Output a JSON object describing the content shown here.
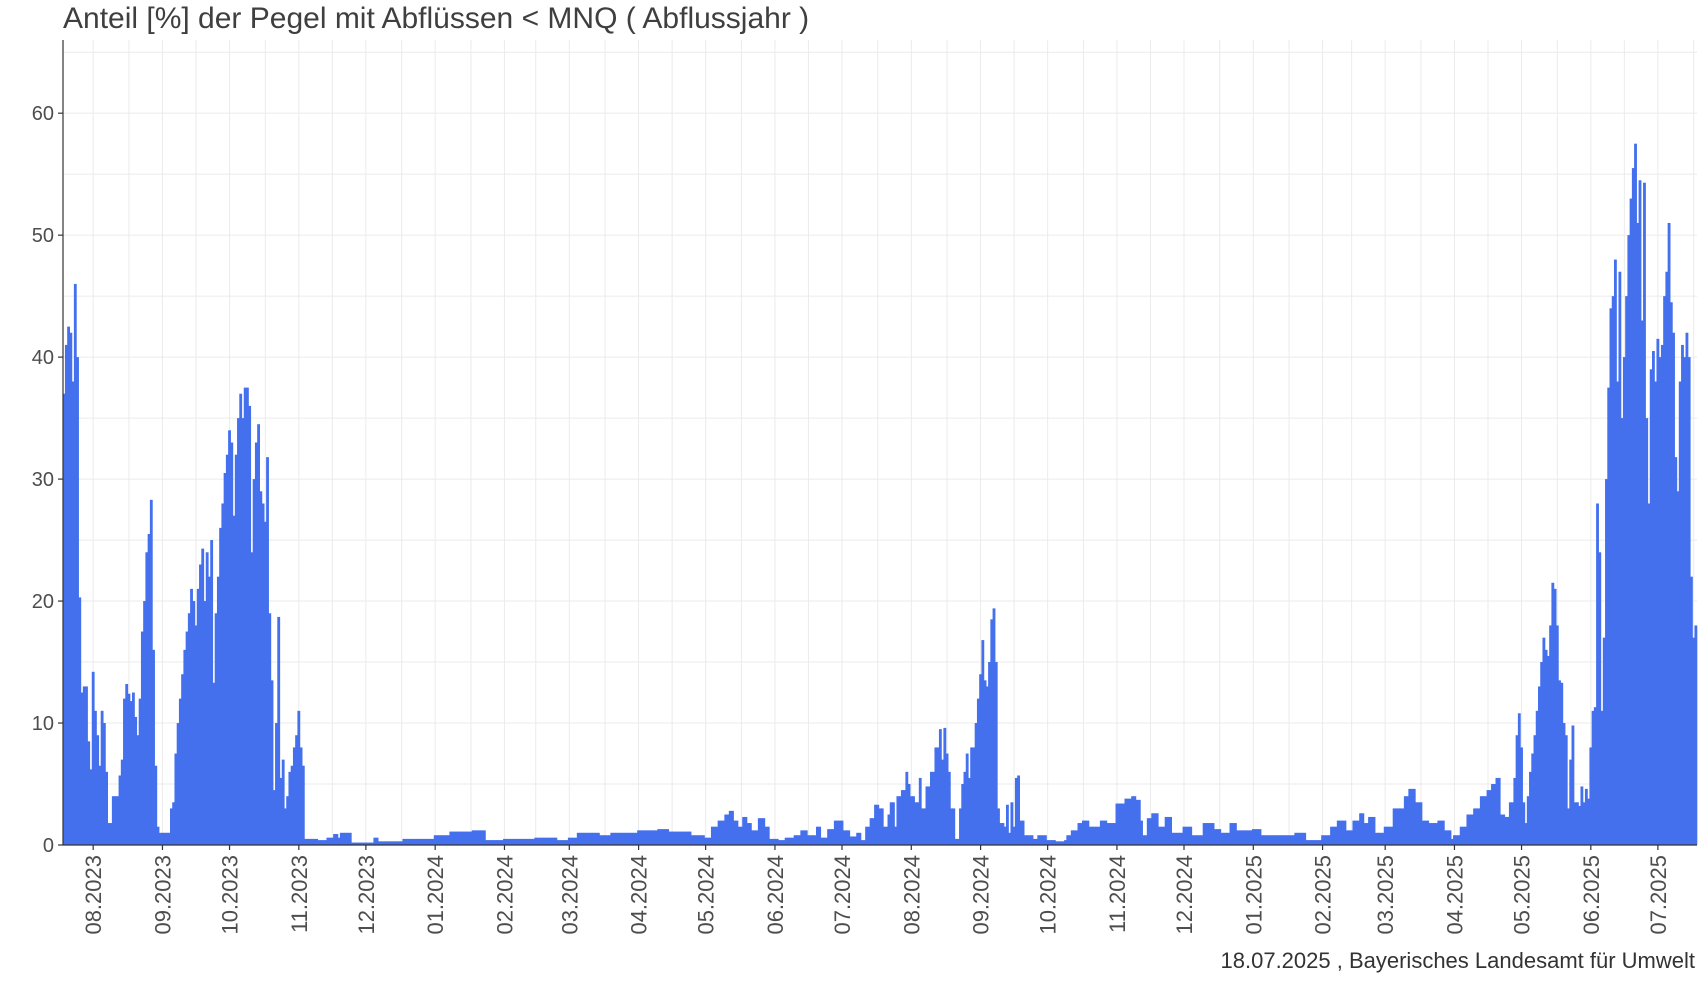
{
  "chart_data": {
    "type": "bar",
    "title": "Anteil [%] der Pegel mit Abflüssen < MNQ ( Abflussjahr )",
    "xlabel": "",
    "ylabel": "",
    "x_range": [
      "2023-07-19",
      "2025-07-18"
    ],
    "ylim": [
      0,
      66
    ],
    "y_ticks": [
      0,
      10,
      20,
      30,
      40,
      50,
      60
    ],
    "x_ticks": [
      "2023-08-01",
      "2023-09-01",
      "2023-10-01",
      "2023-11-01",
      "2023-12-01",
      "2024-01-01",
      "2024-02-01",
      "2024-03-01",
      "2024-04-01",
      "2024-05-01",
      "2024-06-01",
      "2024-07-01",
      "2024-08-01",
      "2024-09-01",
      "2024-10-01",
      "2024-11-01",
      "2024-12-01",
      "2025-01-01",
      "2025-02-01",
      "2025-03-01",
      "2025-04-01",
      "2025-05-01",
      "2025-06-01",
      "2025-07-01"
    ],
    "x_tick_labels": [
      "08.2023",
      "09.2023",
      "10.2023",
      "11.2023",
      "12.2023",
      "01.2024",
      "02.2024",
      "03.2024",
      "04.2024",
      "05.2024",
      "06.2024",
      "07.2024",
      "08.2024",
      "09.2024",
      "10.2024",
      "11.2024",
      "12.2024",
      "01.2025",
      "02.2025",
      "03.2025",
      "04.2025",
      "05.2025",
      "06.2025",
      "07.2025"
    ],
    "grid": true,
    "bar_color": "#4470ee",
    "series_anchors": [
      [
        "2023-07-19",
        37
      ],
      [
        "2023-07-20",
        41
      ],
      [
        "2023-07-21",
        42.5
      ],
      [
        "2023-07-22",
        42
      ],
      [
        "2023-07-23",
        38
      ],
      [
        "2023-07-24",
        46
      ],
      [
        "2023-07-25",
        40
      ],
      [
        "2023-07-26",
        20.3
      ],
      [
        "2023-07-27",
        12.5
      ],
      [
        "2023-07-28",
        13
      ],
      [
        "2023-07-30",
        8.5
      ],
      [
        "2023-07-31",
        6.2
      ],
      [
        "2023-08-01",
        14.2
      ],
      [
        "2023-08-02",
        11
      ],
      [
        "2023-08-03",
        9
      ],
      [
        "2023-08-04",
        6.5
      ],
      [
        "2023-08-05",
        11
      ],
      [
        "2023-08-06",
        10
      ],
      [
        "2023-08-07",
        6
      ],
      [
        "2023-08-08",
        1.8
      ],
      [
        "2023-08-10",
        4
      ],
      [
        "2023-08-12",
        4
      ],
      [
        "2023-08-13",
        5.7
      ],
      [
        "2023-08-14",
        7
      ],
      [
        "2023-08-15",
        12
      ],
      [
        "2023-08-16",
        13.2
      ],
      [
        "2023-08-17",
        12.4
      ],
      [
        "2023-08-18",
        11.8
      ],
      [
        "2023-08-19",
        12.5
      ],
      [
        "2023-08-20",
        10.5
      ],
      [
        "2023-08-21",
        9
      ],
      [
        "2023-08-22",
        12
      ],
      [
        "2023-08-23",
        17.5
      ],
      [
        "2023-08-24",
        20
      ],
      [
        "2023-08-25",
        24
      ],
      [
        "2023-08-26",
        25.5
      ],
      [
        "2023-08-27",
        28.3
      ],
      [
        "2023-08-28",
        16
      ],
      [
        "2023-08-29",
        6.5
      ],
      [
        "2023-08-30",
        1.5
      ],
      [
        "2023-08-31",
        1
      ],
      [
        "2023-09-04",
        1
      ],
      [
        "2023-09-05",
        3
      ],
      [
        "2023-09-06",
        3.5
      ],
      [
        "2023-09-07",
        7.5
      ],
      [
        "2023-09-08",
        10
      ],
      [
        "2023-09-09",
        12
      ],
      [
        "2023-09-10",
        14
      ],
      [
        "2023-09-11",
        16
      ],
      [
        "2023-09-12",
        17.5
      ],
      [
        "2023-09-13",
        19
      ],
      [
        "2023-09-14",
        21
      ],
      [
        "2023-09-15",
        20
      ],
      [
        "2023-09-16",
        18
      ],
      [
        "2023-09-17",
        21
      ],
      [
        "2023-09-18",
        23
      ],
      [
        "2023-09-19",
        24.3
      ],
      [
        "2023-09-20",
        20
      ],
      [
        "2023-09-21",
        24
      ],
      [
        "2023-09-22",
        22
      ],
      [
        "2023-09-23",
        25
      ],
      [
        "2023-09-24",
        13.3
      ],
      [
        "2023-09-25",
        19
      ],
      [
        "2023-09-26",
        22
      ],
      [
        "2023-09-27",
        26
      ],
      [
        "2023-09-28",
        28
      ],
      [
        "2023-09-29",
        30.5
      ],
      [
        "2023-09-30",
        32
      ],
      [
        "2023-10-01",
        34
      ],
      [
        "2023-10-02",
        33
      ],
      [
        "2023-10-03",
        27
      ],
      [
        "2023-10-04",
        32
      ],
      [
        "2023-10-05",
        35
      ],
      [
        "2023-10-06",
        37
      ],
      [
        "2023-10-07",
        35
      ],
      [
        "2023-10-08",
        37.5
      ],
      [
        "2023-10-09",
        37.5
      ],
      [
        "2023-10-10",
        36
      ],
      [
        "2023-10-11",
        24
      ],
      [
        "2023-10-12",
        30
      ],
      [
        "2023-10-13",
        33
      ],
      [
        "2023-10-14",
        34.5
      ],
      [
        "2023-10-15",
        29
      ],
      [
        "2023-10-16",
        28
      ],
      [
        "2023-10-17",
        26.5
      ],
      [
        "2023-10-18",
        31.8
      ],
      [
        "2023-10-19",
        19
      ],
      [
        "2023-10-20",
        13.5
      ],
      [
        "2023-10-21",
        4.5
      ],
      [
        "2023-10-22",
        10
      ],
      [
        "2023-10-23",
        18.7
      ],
      [
        "2023-10-24",
        5.5
      ],
      [
        "2023-10-25",
        7
      ],
      [
        "2023-10-26",
        3
      ],
      [
        "2023-10-27",
        4
      ],
      [
        "2023-10-28",
        6
      ],
      [
        "2023-10-29",
        6.5
      ],
      [
        "2023-10-30",
        8
      ],
      [
        "2023-10-31",
        9
      ],
      [
        "2023-11-01",
        11
      ],
      [
        "2023-11-02",
        8
      ],
      [
        "2023-11-03",
        6.5
      ],
      [
        "2023-11-04",
        0.5
      ],
      [
        "2023-11-10",
        0.4
      ],
      [
        "2023-11-14",
        0.6
      ],
      [
        "2023-11-17",
        0.9
      ],
      [
        "2023-11-19",
        0.6
      ],
      [
        "2023-11-20",
        1
      ],
      [
        "2023-11-25",
        0.2
      ],
      [
        "2023-12-05",
        0.6
      ],
      [
        "2023-12-07",
        0.3
      ],
      [
        "2023-12-15",
        0.3
      ],
      [
        "2023-12-18",
        0.5
      ],
      [
        "2023-12-25",
        0.5
      ],
      [
        "2024-01-01",
        0.8
      ],
      [
        "2024-01-08",
        1.1
      ],
      [
        "2024-01-18",
        1.2
      ],
      [
        "2024-01-24",
        0.4
      ],
      [
        "2024-02-01",
        0.5
      ],
      [
        "2024-02-15",
        0.6
      ],
      [
        "2024-02-25",
        0.4
      ],
      [
        "2024-03-01",
        0.6
      ],
      [
        "2024-03-05",
        1
      ],
      [
        "2024-03-15",
        0.8
      ],
      [
        "2024-03-20",
        1
      ],
      [
        "2024-04-01",
        1.2
      ],
      [
        "2024-04-10",
        1.3
      ],
      [
        "2024-04-15",
        1.1
      ],
      [
        "2024-04-25",
        0.8
      ],
      [
        "2024-05-01",
        0.6
      ],
      [
        "2024-05-04",
        1.5
      ],
      [
        "2024-05-07",
        2
      ],
      [
        "2024-05-10",
        2.5
      ],
      [
        "2024-05-12",
        2.8
      ],
      [
        "2024-05-14",
        2
      ],
      [
        "2024-05-16",
        1.5
      ],
      [
        "2024-05-18",
        2.3
      ],
      [
        "2024-05-20",
        1.8
      ],
      [
        "2024-05-22",
        1.2
      ],
      [
        "2024-05-25",
        2.2
      ],
      [
        "2024-05-28",
        1.5
      ],
      [
        "2024-05-30",
        0.5
      ],
      [
        "2024-06-03",
        0.4
      ],
      [
        "2024-06-06",
        0.6
      ],
      [
        "2024-06-10",
        0.8
      ],
      [
        "2024-06-13",
        1.2
      ],
      [
        "2024-06-16",
        0.8
      ],
      [
        "2024-06-20",
        1.5
      ],
      [
        "2024-06-22",
        0.6
      ],
      [
        "2024-06-25",
        1.3
      ],
      [
        "2024-06-28",
        2
      ],
      [
        "2024-07-02",
        1.2
      ],
      [
        "2024-07-05",
        0.7
      ],
      [
        "2024-07-08",
        1
      ],
      [
        "2024-07-10",
        0.4
      ],
      [
        "2024-07-12",
        1.5
      ],
      [
        "2024-07-14",
        2.2
      ],
      [
        "2024-07-16",
        3.3
      ],
      [
        "2024-07-18",
        3
      ],
      [
        "2024-07-20",
        1.5
      ],
      [
        "2024-07-22",
        2.5
      ],
      [
        "2024-07-23",
        3.5
      ],
      [
        "2024-07-25",
        1.5
      ],
      [
        "2024-07-26",
        4
      ],
      [
        "2024-07-28",
        4.5
      ],
      [
        "2024-07-30",
        6
      ],
      [
        "2024-07-31",
        5
      ],
      [
        "2024-08-01",
        4
      ],
      [
        "2024-08-03",
        3.5
      ],
      [
        "2024-08-05",
        5.5
      ],
      [
        "2024-08-06",
        3
      ],
      [
        "2024-08-08",
        4.8
      ],
      [
        "2024-08-10",
        6
      ],
      [
        "2024-08-12",
        8
      ],
      [
        "2024-08-14",
        9.5
      ],
      [
        "2024-08-15",
        7
      ],
      [
        "2024-08-16",
        9.6
      ],
      [
        "2024-08-17",
        7.5
      ],
      [
        "2024-08-18",
        6
      ],
      [
        "2024-08-19",
        3
      ],
      [
        "2024-08-21",
        0.5
      ],
      [
        "2024-08-22",
        0.5
      ],
      [
        "2024-08-23",
        3
      ],
      [
        "2024-08-24",
        5
      ],
      [
        "2024-08-25",
        6
      ],
      [
        "2024-08-26",
        7.5
      ],
      [
        "2024-08-27",
        5.5
      ],
      [
        "2024-08-28",
        8
      ],
      [
        "2024-08-30",
        10
      ],
      [
        "2024-08-31",
        12
      ],
      [
        "2024-09-01",
        14
      ],
      [
        "2024-09-02",
        16.8
      ],
      [
        "2024-09-03",
        13.5
      ],
      [
        "2024-09-04",
        13
      ],
      [
        "2024-09-05",
        15
      ],
      [
        "2024-09-06",
        18.5
      ],
      [
        "2024-09-07",
        19.4
      ],
      [
        "2024-09-08",
        15
      ],
      [
        "2024-09-09",
        3
      ],
      [
        "2024-09-10",
        1.8
      ],
      [
        "2024-09-12",
        1.5
      ],
      [
        "2024-09-13",
        3.3
      ],
      [
        "2024-09-14",
        1
      ],
      [
        "2024-09-15",
        3.5
      ],
      [
        "2024-09-16",
        1.5
      ],
      [
        "2024-09-17",
        5.5
      ],
      [
        "2024-09-18",
        5.7
      ],
      [
        "2024-09-19",
        2
      ],
      [
        "2024-09-21",
        0.8
      ],
      [
        "2024-09-25",
        0.5
      ],
      [
        "2024-09-27",
        0.8
      ],
      [
        "2024-10-01",
        0.4
      ],
      [
        "2024-10-05",
        0.3
      ],
      [
        "2024-10-09",
        0.4
      ],
      [
        "2024-10-10",
        0.8
      ],
      [
        "2024-10-12",
        1.2
      ],
      [
        "2024-10-15",
        1.8
      ],
      [
        "2024-10-17",
        2
      ],
      [
        "2024-10-20",
        1.5
      ],
      [
        "2024-10-25",
        2
      ],
      [
        "2024-10-28",
        1.8
      ],
      [
        "2024-11-01",
        3.4
      ],
      [
        "2024-11-05",
        3.8
      ],
      [
        "2024-11-08",
        4
      ],
      [
        "2024-11-10",
        3.7
      ],
      [
        "2024-11-12",
        2
      ],
      [
        "2024-11-13",
        0.8
      ],
      [
        "2024-11-15",
        2.2
      ],
      [
        "2024-11-17",
        2.6
      ],
      [
        "2024-11-20",
        1.5
      ],
      [
        "2024-11-23",
        2.3
      ],
      [
        "2024-11-26",
        1
      ],
      [
        "2024-12-01",
        1.5
      ],
      [
        "2024-12-05",
        0.8
      ],
      [
        "2024-12-10",
        1.8
      ],
      [
        "2024-12-15",
        1.3
      ],
      [
        "2024-12-18",
        1
      ],
      [
        "2024-12-22",
        1.8
      ],
      [
        "2024-12-25",
        1.2
      ],
      [
        "2025-01-01",
        1.3
      ],
      [
        "2025-01-05",
        0.8
      ],
      [
        "2025-01-15",
        0.8
      ],
      [
        "2025-01-20",
        1
      ],
      [
        "2025-01-25",
        0.4
      ],
      [
        "2025-02-01",
        0.8
      ],
      [
        "2025-02-05",
        1.5
      ],
      [
        "2025-02-08",
        2
      ],
      [
        "2025-02-12",
        1.2
      ],
      [
        "2025-02-15",
        2
      ],
      [
        "2025-02-18",
        2.6
      ],
      [
        "2025-02-20",
        1.8
      ],
      [
        "2025-02-22",
        2.3
      ],
      [
        "2025-02-25",
        1
      ],
      [
        "2025-03-01",
        1.5
      ],
      [
        "2025-03-05",
        3
      ],
      [
        "2025-03-10",
        4
      ],
      [
        "2025-03-12",
        4.6
      ],
      [
        "2025-03-15",
        3.5
      ],
      [
        "2025-03-18",
        2
      ],
      [
        "2025-03-21",
        1.8
      ],
      [
        "2025-03-25",
        2
      ],
      [
        "2025-03-28",
        1.2
      ],
      [
        "2025-03-31",
        0.5
      ],
      [
        "2025-04-01",
        0.8
      ],
      [
        "2025-04-04",
        1.5
      ],
      [
        "2025-04-07",
        2.5
      ],
      [
        "2025-04-10",
        3
      ],
      [
        "2025-04-13",
        4
      ],
      [
        "2025-04-16",
        4.5
      ],
      [
        "2025-04-18",
        5
      ],
      [
        "2025-04-20",
        5.5
      ],
      [
        "2025-04-22",
        2.5
      ],
      [
        "2025-04-24",
        2.3
      ],
      [
        "2025-04-26",
        3.5
      ],
      [
        "2025-04-28",
        5.5
      ],
      [
        "2025-04-29",
        9
      ],
      [
        "2025-04-30",
        10.8
      ],
      [
        "2025-05-01",
        8
      ],
      [
        "2025-05-02",
        3.5
      ],
      [
        "2025-05-03",
        1.8
      ],
      [
        "2025-05-04",
        4
      ],
      [
        "2025-05-05",
        6
      ],
      [
        "2025-05-06",
        7.5
      ],
      [
        "2025-05-07",
        9
      ],
      [
        "2025-05-08",
        11
      ],
      [
        "2025-05-09",
        13
      ],
      [
        "2025-05-10",
        15
      ],
      [
        "2025-05-11",
        17
      ],
      [
        "2025-05-12",
        16
      ],
      [
        "2025-05-13",
        15.5
      ],
      [
        "2025-05-14",
        18
      ],
      [
        "2025-05-15",
        21.5
      ],
      [
        "2025-05-16",
        21
      ],
      [
        "2025-05-17",
        18
      ],
      [
        "2025-05-18",
        13.5
      ],
      [
        "2025-05-19",
        13.3
      ],
      [
        "2025-05-20",
        10
      ],
      [
        "2025-05-21",
        9
      ],
      [
        "2025-05-22",
        3
      ],
      [
        "2025-05-23",
        7
      ],
      [
        "2025-05-24",
        9.8
      ],
      [
        "2025-05-25",
        3.5
      ],
      [
        "2025-05-27",
        3.2
      ],
      [
        "2025-05-28",
        4.8
      ],
      [
        "2025-05-29",
        3.5
      ],
      [
        "2025-05-30",
        4.6
      ],
      [
        "2025-05-31",
        3.8
      ],
      [
        "2025-06-01",
        8
      ],
      [
        "2025-06-02",
        11
      ],
      [
        "2025-06-03",
        11.3
      ],
      [
        "2025-06-04",
        28
      ],
      [
        "2025-06-05",
        24
      ],
      [
        "2025-06-06",
        11
      ],
      [
        "2025-06-07",
        17
      ],
      [
        "2025-06-08",
        30
      ],
      [
        "2025-06-09",
        37.5
      ],
      [
        "2025-06-10",
        44
      ],
      [
        "2025-06-11",
        45
      ],
      [
        "2025-06-12",
        48
      ],
      [
        "2025-06-13",
        38
      ],
      [
        "2025-06-14",
        47
      ],
      [
        "2025-06-15",
        35
      ],
      [
        "2025-06-16",
        40
      ],
      [
        "2025-06-17",
        45
      ],
      [
        "2025-06-18",
        50
      ],
      [
        "2025-06-19",
        53
      ],
      [
        "2025-06-20",
        55.5
      ],
      [
        "2025-06-21",
        57.5
      ],
      [
        "2025-06-22",
        51
      ],
      [
        "2025-06-23",
        54.5
      ],
      [
        "2025-06-24",
        43
      ],
      [
        "2025-06-25",
        54.3
      ],
      [
        "2025-06-26",
        35
      ],
      [
        "2025-06-27",
        28
      ],
      [
        "2025-06-28",
        39
      ],
      [
        "2025-06-29",
        40.5
      ],
      [
        "2025-06-30",
        38
      ],
      [
        "2025-07-01",
        41.5
      ],
      [
        "2025-07-02",
        40
      ],
      [
        "2025-07-03",
        41
      ],
      [
        "2025-07-04",
        45
      ],
      [
        "2025-07-05",
        47
      ],
      [
        "2025-07-06",
        51
      ],
      [
        "2025-07-07",
        44.5
      ],
      [
        "2025-07-08",
        42
      ],
      [
        "2025-07-09",
        31.8
      ],
      [
        "2025-07-10",
        29
      ],
      [
        "2025-07-11",
        38
      ],
      [
        "2025-07-12",
        41
      ],
      [
        "2025-07-13",
        40
      ],
      [
        "2025-07-14",
        42
      ],
      [
        "2025-07-15",
        40
      ],
      [
        "2025-07-16",
        22
      ],
      [
        "2025-07-17",
        17
      ],
      [
        "2025-07-18",
        18
      ]
    ]
  },
  "footer": "18.07.2025 , Bayerisches Landesamt für Umwelt"
}
